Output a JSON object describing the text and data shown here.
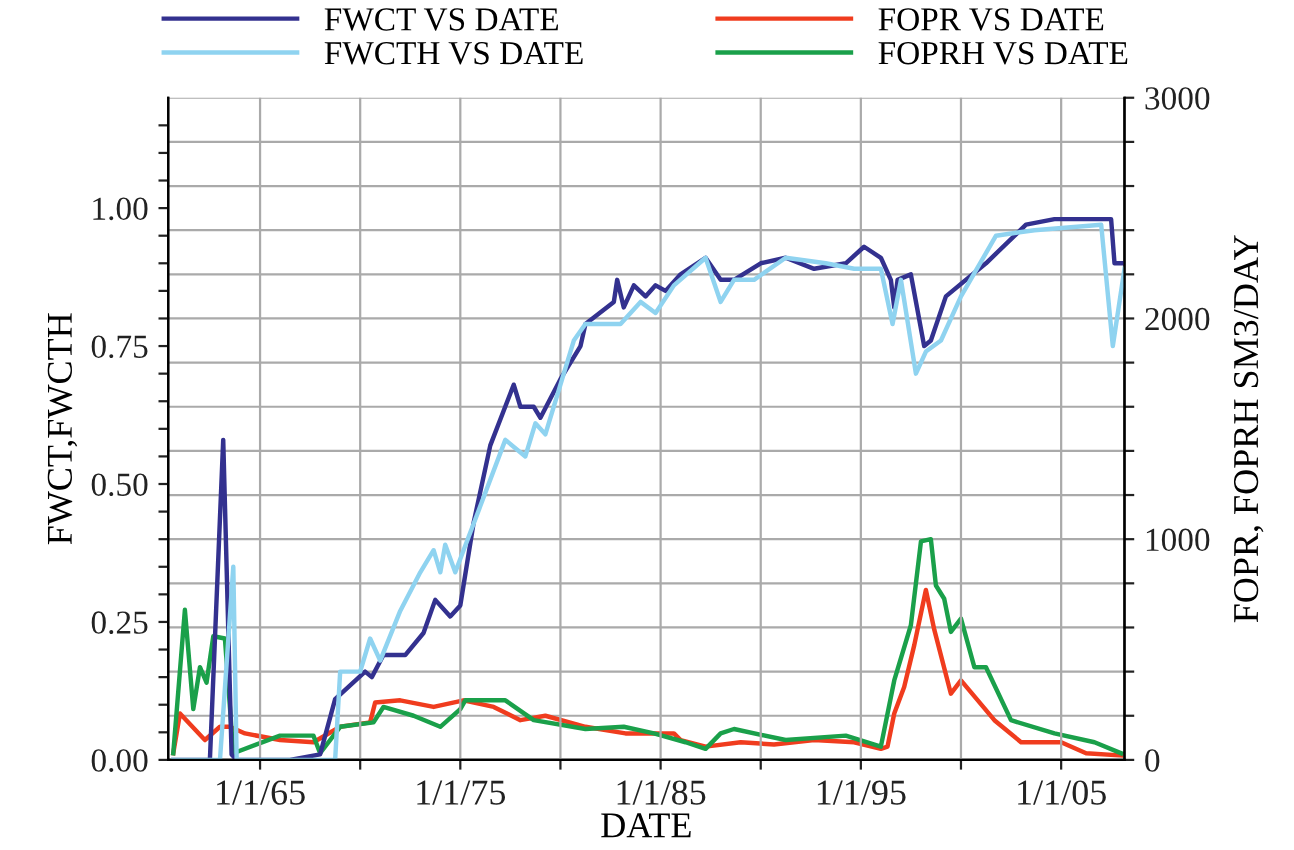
{
  "chart_data": {
    "type": "line",
    "xlabel": "DATE",
    "ylabel": "FWCT,FWCTH",
    "y2label": "FOPR, FOPRH SM3/DAY",
    "xlim": [
      "1960-06",
      "2008-03"
    ],
    "xticks": [
      {
        "value": "1965-01-01",
        "label": "1/1/65"
      },
      {
        "value": "1970-01-01",
        "label": null
      },
      {
        "value": "1975-01-01",
        "label": "1/1/75"
      },
      {
        "value": "1980-01-01",
        "label": null
      },
      {
        "value": "1985-01-01",
        "label": "1/1/85"
      },
      {
        "value": "1990-01-01",
        "label": null
      },
      {
        "value": "1995-01-01",
        "label": "1/1/95"
      },
      {
        "value": "2000-01-01",
        "label": null
      },
      {
        "value": "2005-01-01",
        "label": "1/1/05"
      }
    ],
    "ylim": [
      0,
      1.2
    ],
    "yticks": [
      {
        "value": 0,
        "label": "0.00"
      },
      {
        "value": 0.05,
        "label": null
      },
      {
        "value": 0.1,
        "label": null
      },
      {
        "value": 0.15,
        "label": null
      },
      {
        "value": 0.2,
        "label": null
      },
      {
        "value": 0.25,
        "label": "0.25"
      },
      {
        "value": 0.3,
        "label": null
      },
      {
        "value": 0.35,
        "label": null
      },
      {
        "value": 0.4,
        "label": null
      },
      {
        "value": 0.45,
        "label": null
      },
      {
        "value": 0.5,
        "label": "0.50"
      },
      {
        "value": 0.55,
        "label": null
      },
      {
        "value": 0.6,
        "label": null
      },
      {
        "value": 0.65,
        "label": null
      },
      {
        "value": 0.7,
        "label": null
      },
      {
        "value": 0.75,
        "label": "0.75"
      },
      {
        "value": 0.8,
        "label": null
      },
      {
        "value": 0.85,
        "label": null
      },
      {
        "value": 0.9,
        "label": null
      },
      {
        "value": 0.95,
        "label": null
      },
      {
        "value": 1.0,
        "label": "1.00"
      },
      {
        "value": 1.05,
        "label": null
      },
      {
        "value": 1.1,
        "label": null
      },
      {
        "value": 1.15,
        "label": null
      }
    ],
    "y2lim": [
      0,
      3000
    ],
    "y2ticks": [
      0,
      {
        "value": 200,
        "label": null
      },
      {
        "value": 400,
        "label": null
      },
      {
        "value": 600,
        "label": null
      },
      {
        "value": 800,
        "label": null
      },
      1000,
      {
        "value": 1200,
        "label": null
      },
      {
        "value": 1400,
        "label": null
      },
      {
        "value": 1600,
        "label": null
      },
      {
        "value": 1800,
        "label": null
      },
      2000,
      {
        "value": 2200,
        "label": null
      },
      {
        "value": 2400,
        "label": null
      },
      {
        "value": 2600,
        "label": null
      },
      {
        "value": 2800,
        "label": null
      },
      3000
    ],
    "grid": true,
    "legend": "top",
    "line_style": "solid",
    "marker": "none",
    "series": [
      {
        "name": "FWCT VS DATE",
        "color": "#33318f",
        "x": [
          "1960-09",
          "1962-07",
          "1963-03",
          "1963-08",
          "1963-11",
          "1965-01",
          "1966-07",
          "1968-01",
          "1968-10",
          "1970-04",
          "1970-08",
          "1971-03",
          "1972-04",
          "1973-03",
          "1973-10",
          "1974-07",
          "1975-01",
          "1975-09",
          "1976-07",
          "1977-09",
          "1978-01",
          "1978-09",
          "1979-01",
          "1980-01",
          "1981-01",
          "1981-04",
          "1982-09",
          "1982-11",
          "1983-03",
          "1983-09",
          "1984-04",
          "1984-10",
          "1985-04",
          "1986-01",
          "1987-04",
          "1988-01",
          "1988-09",
          "1990-01",
          "1991-04",
          "1992-09",
          "1994-04",
          "1995-03",
          "1996-01",
          "1996-07",
          "1996-09",
          "1996-11",
          "1997-07",
          "1998-03",
          "1998-07",
          "1999-04",
          "2001-04",
          "2003-04",
          "2004-09",
          "2005-10",
          "2007-07",
          "2007-09",
          "2008-03"
        ],
        "values": [
          0,
          0,
          0.58,
          0.01,
          0,
          0,
          0,
          0.01,
          0.11,
          0.16,
          0.15,
          0.19,
          0.19,
          0.23,
          0.29,
          0.26,
          0.28,
          0.43,
          0.57,
          0.68,
          0.64,
          0.64,
          0.62,
          0.69,
          0.75,
          0.79,
          0.83,
          0.87,
          0.82,
          0.86,
          0.84,
          0.86,
          0.85,
          0.88,
          0.91,
          0.87,
          0.87,
          0.9,
          0.91,
          0.89,
          0.9,
          0.93,
          0.91,
          0.87,
          0.82,
          0.87,
          0.88,
          0.75,
          0.76,
          0.84,
          0.9,
          0.97,
          0.98,
          0.98,
          0.98,
          0.9,
          0.9
        ]
      },
      {
        "name": "FWCTH VS DATE",
        "color": "#8fd3f0",
        "x": [
          "1960-09",
          "1962-07",
          "1963-01",
          "1963-09",
          "1963-11",
          "1966-01",
          "1968-01",
          "1968-10",
          "1969-01",
          "1970-01",
          "1970-07",
          "1971-01",
          "1972-01",
          "1973-01",
          "1973-09",
          "1974-01",
          "1974-04",
          "1974-10",
          "1975-03",
          "1976-01",
          "1977-04",
          "1978-04",
          "1978-10",
          "1979-04",
          "1980-09",
          "1981-04",
          "1983-01",
          "1984-01",
          "1984-10",
          "1985-09",
          "1987-04",
          "1988-01",
          "1988-09",
          "1989-09",
          "1991-04",
          "1993-04",
          "1994-09",
          "1996-01",
          "1996-08",
          "1997-01",
          "1997-10",
          "1998-04",
          "1999-01",
          "2000-01",
          "2001-10",
          "2003-09",
          "2007-01",
          "2007-08",
          "2008-03"
        ],
        "values": [
          0,
          0,
          0,
          0.35,
          0,
          0,
          0,
          0,
          0.16,
          0.16,
          0.22,
          0.18,
          0.27,
          0.34,
          0.38,
          0.34,
          0.39,
          0.34,
          0.38,
          0.46,
          0.58,
          0.55,
          0.61,
          0.59,
          0.76,
          0.79,
          0.79,
          0.83,
          0.81,
          0.86,
          0.91,
          0.83,
          0.87,
          0.87,
          0.91,
          0.9,
          0.89,
          0.89,
          0.79,
          0.87,
          0.7,
          0.74,
          0.76,
          0.84,
          0.95,
          0.96,
          0.97,
          0.75,
          0.89
        ]
      },
      {
        "name": "FOPR VS DATE",
        "color": "#f03c1e",
        "axis": "y2",
        "x": [
          "1960-09",
          "1961-01",
          "1962-04",
          "1963-01",
          "1963-07",
          "1964-04",
          "1966-01",
          "1967-09",
          "1969-01",
          "1970-07",
          "1970-10",
          "1972-01",
          "1973-09",
          "1975-03",
          "1976-09",
          "1978-01",
          "1979-04",
          "1981-04",
          "1983-04",
          "1985-09",
          "1986-01",
          "1987-04",
          "1989-01",
          "1990-09",
          "1992-09",
          "1994-09",
          "1996-01",
          "1996-05",
          "1996-09",
          "1997-03",
          "1997-09",
          "1998-04",
          "1998-09",
          "1999-07",
          "2000-01",
          "2001-09",
          "2003-01",
          "2005-01",
          "2006-04",
          "2008-01"
        ],
        "values": [
          30,
          210,
          90,
          150,
          150,
          120,
          90,
          80,
          150,
          170,
          260,
          270,
          240,
          270,
          240,
          180,
          200,
          150,
          120,
          120,
          90,
          60,
          80,
          70,
          90,
          80,
          50,
          60,
          210,
          330,
          520,
          770,
          590,
          300,
          360,
          180,
          80,
          80,
          30,
          20
        ]
      },
      {
        "name": "FOPRH VS DATE",
        "color": "#1aa04a",
        "axis": "y2",
        "x": [
          "1960-09",
          "1961-04",
          "1961-09",
          "1962-01",
          "1962-05",
          "1962-09",
          "1963-04",
          "1963-09",
          "1966-01",
          "1967-09",
          "1968-01",
          "1969-01",
          "1970-09",
          "1971-03",
          "1972-09",
          "1974-01",
          "1975-01",
          "1975-04",
          "1977-04",
          "1978-09",
          "1981-04",
          "1983-03",
          "1984-09",
          "1986-04",
          "1987-04",
          "1988-01",
          "1988-09",
          "1991-04",
          "1994-04",
          "1996-01",
          "1996-09",
          "1997-07",
          "1998-01",
          "1998-07",
          "1998-10",
          "1999-03",
          "1999-07",
          "2000-01",
          "2000-09",
          "2001-04",
          "2002-07",
          "2004-09",
          "2006-09",
          "2008-01"
        ],
        "values": [
          30,
          680,
          230,
          420,
          350,
          560,
          550,
          30,
          110,
          110,
          30,
          150,
          170,
          240,
          200,
          150,
          230,
          270,
          270,
          180,
          140,
          150,
          120,
          80,
          50,
          120,
          140,
          90,
          110,
          60,
          360,
          610,
          990,
          1000,
          790,
          730,
          580,
          640,
          420,
          420,
          180,
          120,
          80,
          30
        ]
      }
    ]
  }
}
